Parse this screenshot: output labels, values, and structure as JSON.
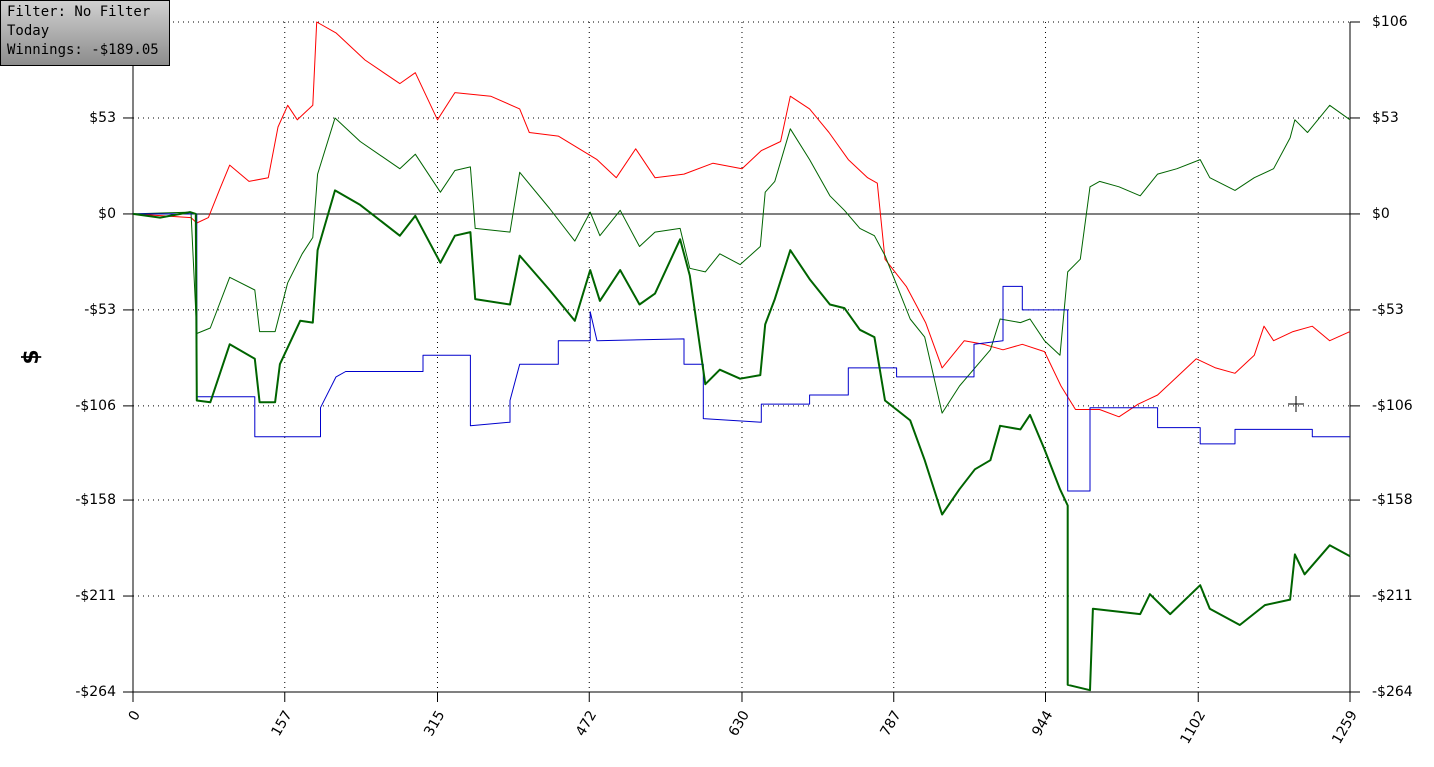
{
  "chart_data": {
    "type": "line",
    "ylabel": "$",
    "info_box": [
      "Filter: No Filter",
      "Today",
      "Winnings: -$189.05"
    ],
    "xlim": [
      0,
      1259
    ],
    "xticks": [
      0,
      157,
      315,
      472,
      630,
      787,
      944,
      1102,
      1259
    ],
    "ylim": [
      -264,
      106
    ],
    "yticks": [
      {
        "value": 106,
        "label": "$106"
      },
      {
        "value": 53,
        "label": "$53"
      },
      {
        "value": 0,
        "label": "$0"
      },
      {
        "value": -53,
        "label": "-$53"
      },
      {
        "value": -106,
        "label": "-$106"
      },
      {
        "value": -158,
        "label": "-$158"
      },
      {
        "value": -211,
        "label": "-$211"
      },
      {
        "value": -264,
        "label": "-$264"
      }
    ],
    "grid": true,
    "series": [
      {
        "color": "#ff0000",
        "line_width": 1,
        "x": [
          0,
          60,
          66,
          78,
          90,
          100,
          120,
          140,
          150,
          160,
          170,
          186,
          190,
          210,
          240,
          276,
          292,
          315,
          333,
          370,
          400,
          410,
          440,
          480,
          500,
          520,
          540,
          570,
          600,
          630,
          650,
          670,
          680,
          700,
          720,
          740,
          760,
          770,
          778,
          800,
          820,
          837,
          860,
          880,
          900,
          920,
          943,
          960,
          975,
          1000,
          1020,
          1040,
          1060,
          1080,
          1100,
          1120,
          1140,
          1160,
          1170,
          1180,
          1200,
          1220,
          1238,
          1259
        ],
        "values": [
          0,
          -2,
          -5,
          -2,
          14,
          27,
          18,
          20,
          48,
          60,
          52,
          60,
          106,
          100,
          85,
          72,
          78,
          52,
          67,
          65,
          58,
          45,
          43,
          30,
          20,
          36,
          20,
          22,
          28,
          25,
          35,
          40,
          65,
          58,
          45,
          30,
          20,
          17,
          -25,
          -40,
          -60,
          -85,
          -70,
          -72,
          -75,
          -72,
          -76,
          -95,
          -108,
          -108,
          -112,
          -105,
          -100,
          -90,
          -80,
          -85,
          -88,
          -78,
          -62,
          -70,
          -65,
          -62,
          -70,
          -65
        ]
      },
      {
        "color": "#006400",
        "line_width": 1,
        "x": [
          0,
          60,
          66,
          80,
          100,
          126,
          131,
          147,
          160,
          175,
          186,
          191,
          209,
          235,
          276,
          292,
          318,
          333,
          349,
          354,
          390,
          400,
          431,
          457,
          473,
          483,
          504,
          524,
          540,
          566,
          576,
          592,
          607,
          628,
          649,
          654,
          664,
          680,
          700,
          721,
          736,
          752,
          767,
          778,
          804,
          819,
          837,
          855,
          871,
          887,
          897,
          918,
          928,
          943,
          959,
          967,
          980,
          990,
          1000,
          1020,
          1042,
          1060,
          1080,
          1104,
          1114,
          1140,
          1160,
          1180,
          1197,
          1202,
          1215,
          1238,
          1259
        ],
        "values": [
          0,
          1,
          -66,
          -63,
          -35,
          -42,
          -65,
          -65,
          -38,
          -22,
          -13,
          22,
          53,
          40,
          25,
          33,
          12,
          24,
          26,
          -8,
          -10,
          23,
          3,
          -15,
          1,
          -12,
          2,
          -18,
          -10,
          -8,
          -30,
          -32,
          -22,
          -28,
          -18,
          12,
          18,
          47,
          30,
          10,
          2,
          -8,
          -12,
          -23,
          -58,
          -68,
          -110,
          -95,
          -85,
          -75,
          -58,
          -60,
          -58,
          -70,
          -78,
          -32,
          -25,
          15,
          18,
          15,
          10,
          22,
          25,
          30,
          20,
          13,
          20,
          25,
          42,
          52,
          45,
          60,
          52
        ]
      },
      {
        "color": "#0000cc",
        "line_width": 1,
        "x": [
          0,
          66,
          66,
          126,
          126,
          194,
          194,
          210,
          220,
          300,
          300,
          349,
          349,
          390,
          390,
          400,
          440,
          440,
          473,
          473,
          480,
          570,
          570,
          590,
          590,
          650,
          650,
          700,
          700,
          740,
          740,
          790,
          790,
          870,
          870,
          900,
          900,
          920,
          920,
          967,
          967,
          990,
          990,
          1060,
          1060,
          1104,
          1104,
          1140,
          1140,
          1220,
          1220,
          1259
        ],
        "values": [
          0,
          0,
          -101,
          -101,
          -123,
          -123,
          -107,
          -90,
          -87,
          -87,
          -78,
          -78,
          -117,
          -115,
          -103,
          -83,
          -83,
          -70,
          -70,
          -54,
          -70,
          -69,
          -83,
          -83,
          -113,
          -115,
          -105,
          -105,
          -100,
          -100,
          -85,
          -85,
          -90,
          -90,
          -72,
          -70,
          -40,
          -40,
          -53,
          -53,
          -153,
          -153,
          -107,
          -107,
          -118,
          -118,
          -127,
          -127,
          -119,
          -119,
          -123,
          -123
        ]
      },
      {
        "color": "#006400",
        "line_width": 2,
        "x": [
          0,
          28,
          59,
          65,
          66,
          80,
          100,
          126,
          131,
          147,
          152,
          173,
          186,
          191,
          209,
          235,
          276,
          292,
          318,
          333,
          349,
          354,
          390,
          400,
          431,
          457,
          473,
          483,
          504,
          524,
          540,
          566,
          576,
          592,
          607,
          628,
          649,
          654,
          664,
          680,
          700,
          721,
          736,
          752,
          767,
          778,
          804,
          819,
          837,
          855,
          871,
          887,
          897,
          918,
          928,
          943,
          959,
          967,
          967,
          990,
          993,
          1042,
          1052,
          1073,
          1104,
          1114,
          1145,
          1171,
          1197,
          1202,
          1212,
          1238,
          1259
        ],
        "values": [
          0,
          -2,
          1,
          0,
          -103,
          -104,
          -72,
          -80,
          -104,
          -104,
          -83,
          -59,
          -60,
          -20,
          13,
          5,
          -12,
          -1,
          -27,
          -12,
          -10,
          -47,
          -50,
          -23,
          -42,
          -59,
          -31,
          -48,
          -31,
          -50,
          -44,
          -14,
          -34,
          -94,
          -86,
          -91,
          -89,
          -61,
          -47,
          -20,
          -36,
          -50,
          -52,
          -64,
          -68,
          -103,
          -114,
          -136,
          -166,
          -152,
          -141,
          -136,
          -117,
          -119,
          -111,
          -130,
          -152,
          -161,
          -260,
          -263,
          -218,
          -221,
          -210,
          -221,
          -205,
          -218,
          -227,
          -216,
          -213,
          -188,
          -199,
          -183,
          -189
        ]
      }
    ]
  }
}
